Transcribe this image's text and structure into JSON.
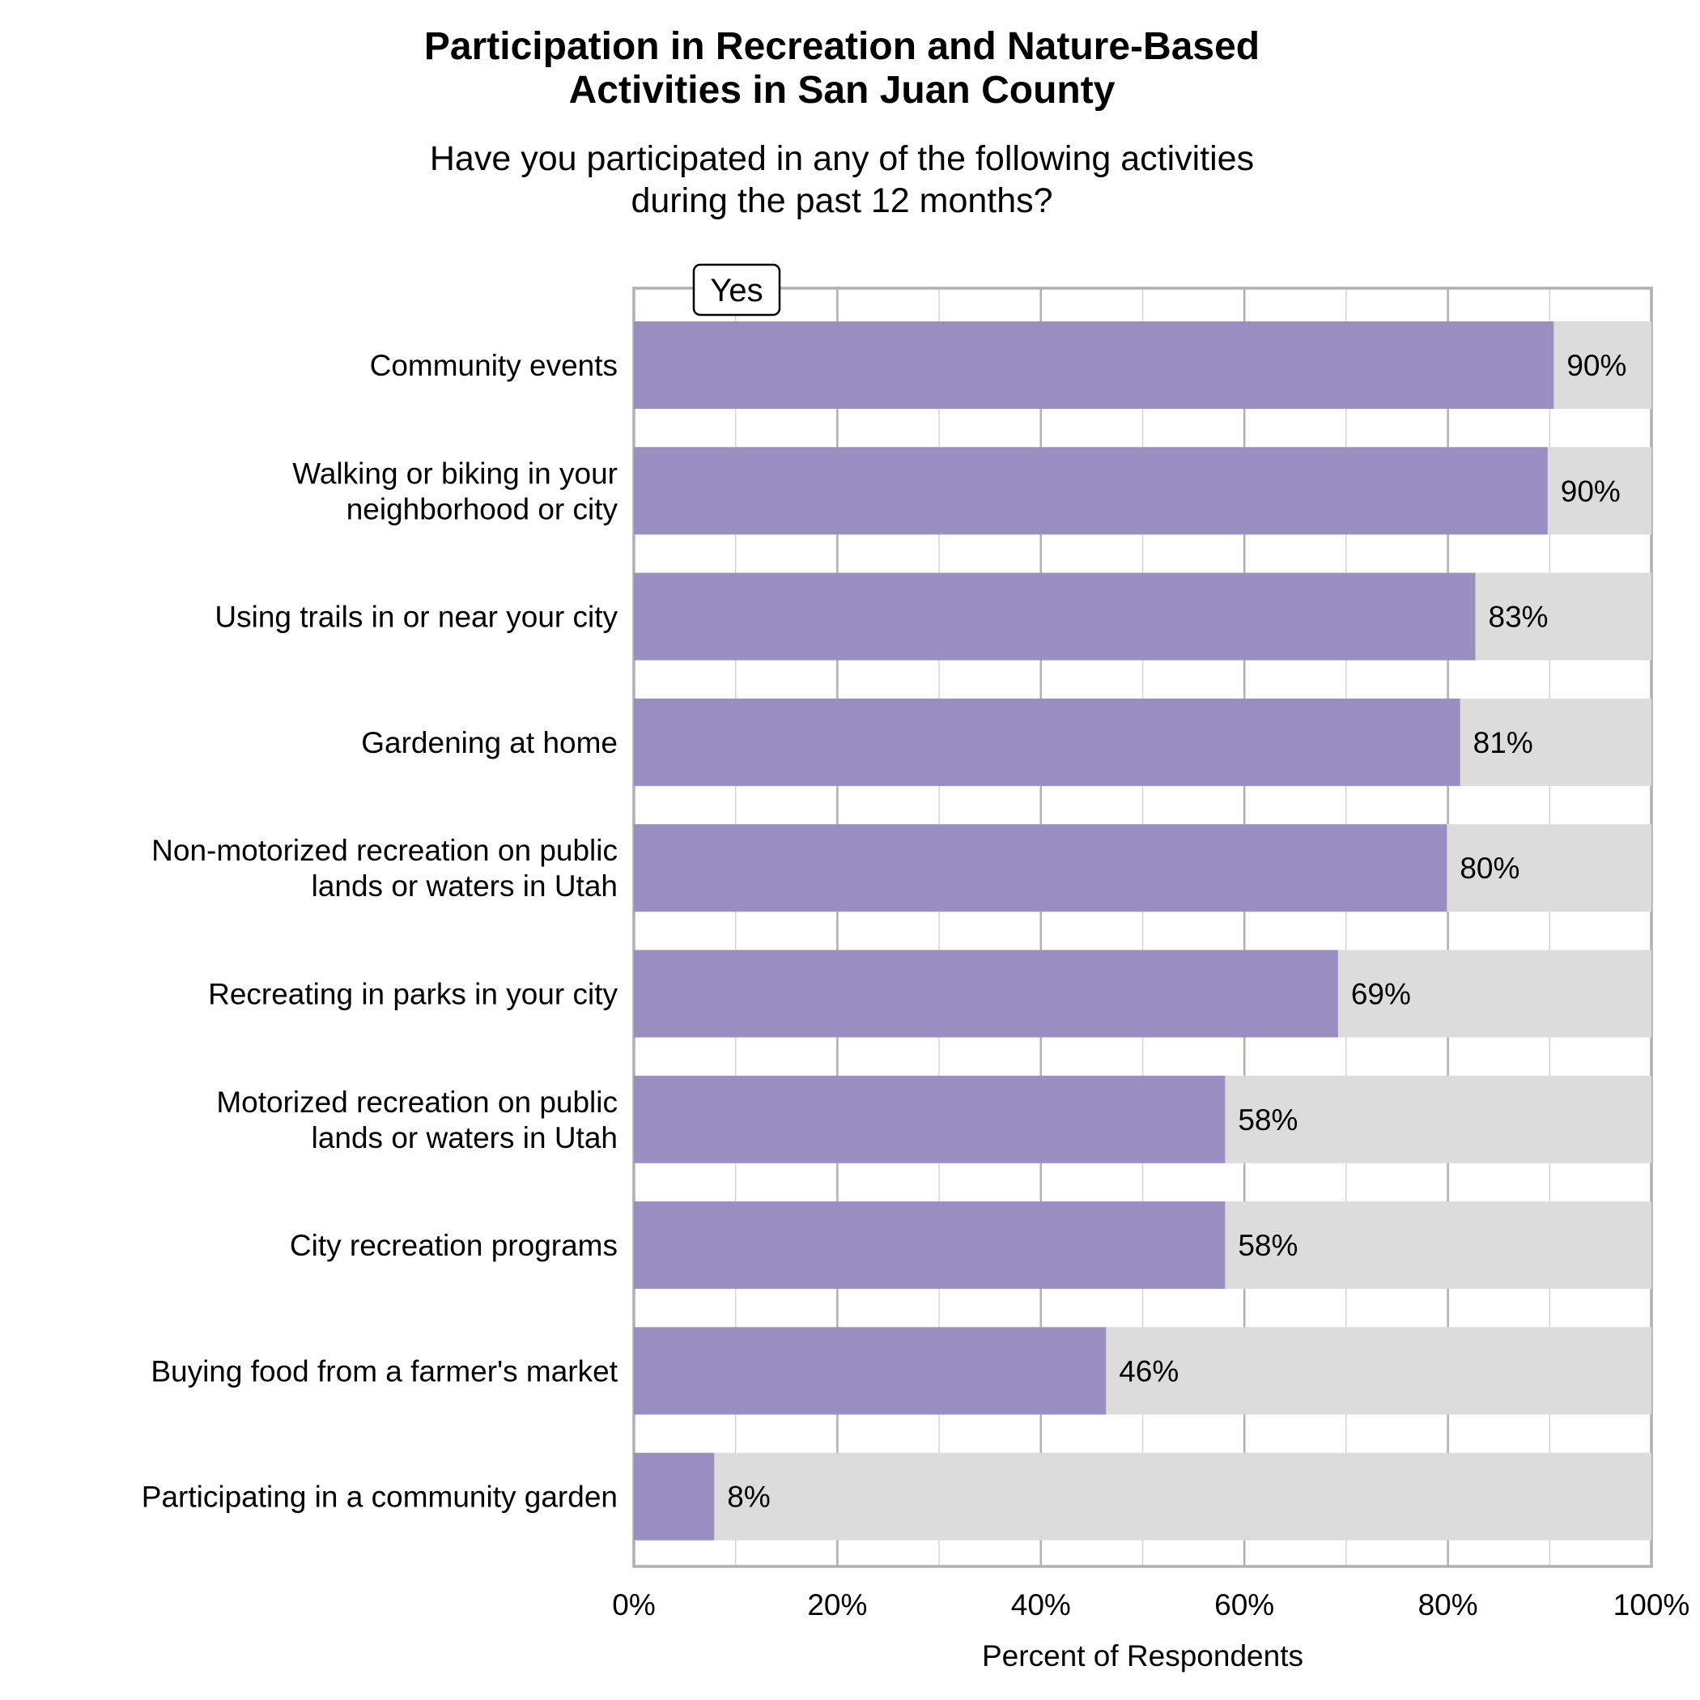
{
  "chart_data": {
    "type": "bar",
    "orientation": "horizontal",
    "title": [
      "Participation in Recreation and Nature-Based",
      "Activities in San Juan County"
    ],
    "subtitle": [
      "Have you participated in any of the following activities",
      "during the past 12 months?"
    ],
    "xlabel": "Percent of Respondents",
    "ylabel": "",
    "xlim": [
      0,
      100
    ],
    "xticks": [
      "0%",
      "20%",
      "40%",
      "60%",
      "80%",
      "100%"
    ],
    "grid": true,
    "legend": {
      "label": "Yes",
      "placement": "top-left"
    },
    "colors": {
      "yes": "#998fc3",
      "remainder": "#dcdcdc",
      "grid": "#b0b0b0"
    },
    "categories": [
      [
        "Community events"
      ],
      [
        "Walking or biking in your",
        "neighborhood or city"
      ],
      [
        "Using trails in or near your city"
      ],
      [
        "Gardening at home"
      ],
      [
        "Non-motorized recreation on public",
        "lands or waters in Utah"
      ],
      [
        "Recreating in parks in your city"
      ],
      [
        "Motorized recreation on public",
        "lands or waters in Utah"
      ],
      [
        "City recreation programs"
      ],
      [
        "Buying food from a farmer's market"
      ],
      [
        "Participating in a community garden"
      ]
    ],
    "values": [
      90.4,
      89.8,
      82.7,
      81.2,
      79.9,
      69.2,
      58.1,
      58.1,
      46.4,
      7.9
    ],
    "labels": [
      "90%",
      "90%",
      "83%",
      "81%",
      "80%",
      "69%",
      "58%",
      "58%",
      "46%",
      "8%"
    ]
  }
}
